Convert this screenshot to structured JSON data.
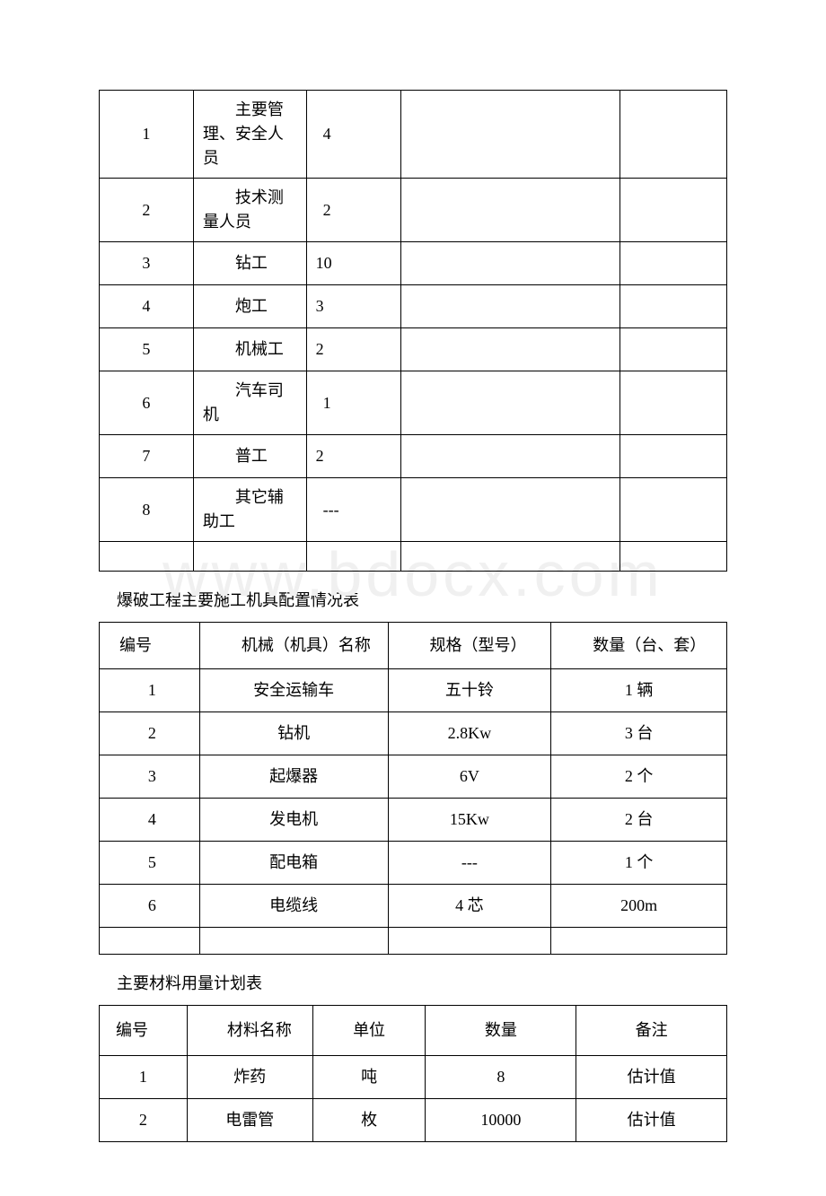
{
  "watermark": "www.bdocx.com",
  "table1": {
    "rows": [
      {
        "no": "1",
        "role": "主要管理、安全人员",
        "count": "4",
        "tall": true
      },
      {
        "no": "2",
        "role": "技术测量人员",
        "count": "2",
        "tall": true
      },
      {
        "no": "3",
        "role": "钻工",
        "count": "10"
      },
      {
        "no": "4",
        "role": "炮工",
        "count": "3"
      },
      {
        "no": "5",
        "role": "机械工",
        "count": "2"
      },
      {
        "no": "6",
        "role": "汽车司机",
        "count": "1",
        "tall": true
      },
      {
        "no": "7",
        "role": "普工",
        "count": "2"
      },
      {
        "no": "8",
        "role": "其它辅助工",
        "count": "---",
        "tall": true
      }
    ]
  },
  "section2_title": "爆破工程主要施工机具配置情况表",
  "table2": {
    "headers": [
      "编号",
      "机械（机具）名称",
      "规格（型号）",
      "数量（台、套）"
    ],
    "rows": [
      {
        "no": "1",
        "name": "安全运输车",
        "spec": "五十铃",
        "qty": "1 辆"
      },
      {
        "no": "2",
        "name": "钻机",
        "spec": "2.8Kw",
        "qty": "3 台"
      },
      {
        "no": "3",
        "name": "起爆器",
        "spec": "6V",
        "qty": "2 个"
      },
      {
        "no": "4",
        "name": "发电机",
        "spec": "15Kw",
        "qty": "2 台"
      },
      {
        "no": "5",
        "name": "配电箱",
        "spec": "---",
        "qty": "1 个"
      },
      {
        "no": "6",
        "name": "电缆线",
        "spec": "4 芯",
        "qty": "200m"
      }
    ]
  },
  "section3_title": "主要材料用量计划表",
  "table3": {
    "headers": [
      "编号",
      "材料名称",
      "单位",
      "数量",
      "备注"
    ],
    "rows": [
      {
        "no": "1",
        "name": "炸药",
        "unit": "吨",
        "qty": "8",
        "remark": "估计值"
      },
      {
        "no": "2",
        "name": "电雷管",
        "unit": "枚",
        "qty": "10000",
        "remark": "估计值"
      }
    ]
  }
}
